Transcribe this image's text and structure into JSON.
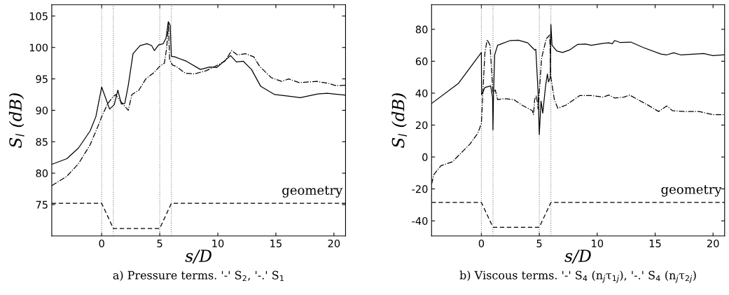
{
  "chart_data": [
    {
      "type": "line",
      "title": "a) Pressure terms. '-' S$_{2}$, '-.' S$_{1}$",
      "xlabel": "s/D",
      "ylabel": "S$_{l}$ (dB)",
      "xlim": [
        -4.3,
        21
      ],
      "ylim": [
        70,
        106.8
      ],
      "xticks": [
        0,
        5,
        10,
        15,
        20
      ],
      "yticks": [
        75,
        80,
        85,
        90,
        95,
        100,
        105
      ],
      "grid": false,
      "ref_lines": [
        {
          "axis": "x",
          "value": 0,
          "color": "#808080",
          "line_style": "dotted"
        },
        {
          "axis": "x",
          "value": 1,
          "color": "#808080",
          "line_style": "dotted"
        },
        {
          "axis": "x",
          "value": 5,
          "color": "#808080",
          "line_style": "dotted"
        },
        {
          "axis": "x",
          "value": 6,
          "color": "#808080",
          "line_style": "dotted"
        }
      ],
      "series": [
        {
          "color": "#000000",
          "line_style": "solid",
          "x": [
            -4.3,
            -3,
            -2,
            -1,
            -0.5,
            0,
            0.68,
            1.08,
            1.39,
            1.69,
            1.99,
            2.29,
            2.7,
            3.3,
            3.9,
            4.3,
            4.54,
            4.9,
            5.3,
            5.54,
            5.74,
            5.9,
            6.0,
            6.3,
            7.3,
            8.5,
            9.3,
            9.9,
            11.1,
            11.6,
            12.2,
            12.9,
            13.7,
            14.9,
            16.3,
            17.1,
            18.6,
            19.4,
            21
          ],
          "values": [
            81.4,
            82.3,
            84,
            86.7,
            89,
            93.7,
            90.2,
            90.9,
            93.2,
            91,
            91.1,
            94,
            99,
            100.3,
            100.6,
            100.3,
            99.5,
            100.4,
            100.6,
            101.5,
            104.1,
            103.5,
            98.6,
            98.5,
            97.8,
            96.5,
            96.9,
            96.8,
            98.7,
            97.7,
            97.8,
            96.5,
            93.8,
            92.5,
            92.2,
            92.0,
            92.6,
            92.7,
            92.4
          ]
        },
        {
          "color": "#000000",
          "line_style": "dashdot",
          "x": [
            -4.3,
            -3,
            -2,
            -1,
            -0.2,
            0,
            0.5,
            0.9,
            1.2,
            1.6,
            2.29,
            2.6,
            3.2,
            3.8,
            4.5,
            5.0,
            5.4,
            5.6,
            5.75,
            5.85,
            6.1,
            6.4,
            7.2,
            8,
            9,
            10,
            10.6,
            11.2,
            11.7,
            12.4,
            13.1,
            13.6,
            14.6,
            15.5,
            16.1,
            17,
            18.5,
            19.5,
            20.2,
            21
          ],
          "values": [
            78.0,
            79.5,
            81.5,
            84.5,
            88,
            89,
            91.0,
            92.0,
            92.5,
            91.5,
            90,
            92.5,
            93.2,
            95.0,
            96,
            97,
            97.5,
            100,
            104,
            98,
            97.2,
            97.0,
            95.9,
            95.8,
            96.3,
            97.2,
            97.8,
            99.5,
            98.8,
            99.0,
            98.5,
            97,
            95.2,
            94.6,
            95.0,
            94.4,
            94.6,
            94.3,
            93.9,
            94.0
          ]
        },
        {
          "color": "#000000",
          "line_style": "dashed",
          "x": [
            -4.3,
            0,
            1,
            5,
            6,
            21
          ],
          "values": [
            75.2,
            75.2,
            71.2,
            71.2,
            75.2,
            75.2
          ]
        }
      ],
      "annotations": [
        {
          "text": "geometry",
          "x": 21,
          "y": 75.2
        }
      ]
    },
    {
      "type": "line",
      "title": "b) Viscous terms. '-' S$_{4}$ (n$_{j}$τ$_{1j}$), '-.' S$_{4}$ (n$_{j}$τ$_{2j}$)",
      "xlabel": "s/D",
      "ylabel": "S$_{l}$ (dB)",
      "xlim": [
        -4.3,
        21
      ],
      "ylim": [
        -49.5,
        95.4
      ],
      "xticks": [
        0,
        5,
        10,
        15,
        20
      ],
      "yticks": [
        -40,
        -20,
        0,
        20,
        40,
        60,
        80
      ],
      "grid": false,
      "ref_lines": [
        {
          "axis": "x",
          "value": 0,
          "color": "#808080",
          "line_style": "dotted"
        },
        {
          "axis": "x",
          "value": 1,
          "color": "#808080",
          "line_style": "dotted"
        },
        {
          "axis": "x",
          "value": 5,
          "color": "#808080",
          "line_style": "dotted"
        },
        {
          "axis": "x",
          "value": 6,
          "color": "#808080",
          "line_style": "dotted"
        }
      ],
      "series": [
        {
          "color": "#000000",
          "line_style": "solid",
          "x": [
            -4.3,
            -2,
            0,
            0.02,
            0.3,
            0.8,
            0.97,
            1.0,
            1.05,
            1.15,
            1.4,
            1.6,
            2.5,
            3.2,
            4,
            4.4,
            4.6,
            4.7,
            4.9,
            5.0,
            5.15,
            5.3,
            5.55,
            5.7,
            5.8,
            5.95,
            6.0,
            6.1,
            6.5,
            7,
            7.6,
            8.3,
            9,
            9.5,
            10.5,
            11,
            11.3,
            11.5,
            12,
            12.9,
            14,
            15.5,
            16.0,
            16.6,
            17.2,
            19.2,
            20,
            21
          ],
          "values": [
            33.5,
            46,
            65.5,
            39,
            43.5,
            44.5,
            37,
            17,
            40,
            64,
            70,
            70.5,
            73,
            73.2,
            71.5,
            68.5,
            67,
            67.5,
            40,
            14,
            35,
            27.5,
            45,
            52,
            47,
            50,
            83,
            70,
            66.5,
            65.5,
            67,
            70.5,
            70.8,
            70,
            71.2,
            71.5,
            71,
            73,
            71.7,
            72,
            68.5,
            64.5,
            64.0,
            65.3,
            64.0,
            64.8,
            63.5,
            64
          ]
        },
        {
          "color": "#000000",
          "line_style": "dashdot",
          "x": [
            -4.3,
            -4.1,
            -3.5,
            -2.5,
            -1,
            -0.3,
            0,
            0.3,
            0.5,
            0.75,
            1.0,
            1.2,
            1.4,
            2,
            2.8,
            3.5,
            4.4,
            4.5,
            4.6,
            4.75,
            4.9,
            5.2,
            5.6,
            5.9,
            6.0,
            6.3,
            6.6,
            7.3,
            8.5,
            9.5,
            10.5,
            11.0,
            11.5,
            12.3,
            12.8,
            13.5,
            14.5,
            15.3,
            16.0,
            16.5,
            17.5,
            18.8,
            20,
            21
          ],
          "values": [
            -17,
            -11,
            -5.5,
            -3,
            8,
            15,
            21,
            65,
            73.5,
            70,
            40,
            42,
            36,
            36.5,
            36,
            32.5,
            29,
            26.5,
            36,
            38.5,
            30,
            62,
            74,
            76.5,
            50,
            36,
            30.5,
            32.5,
            38.5,
            38.5,
            37.5,
            38.8,
            37,
            37.5,
            38.8,
            36,
            32,
            28.5,
            32,
            29,
            28.5,
            28.5,
            26.5,
            26.5
          ]
        },
        {
          "color": "#000000",
          "line_style": "dashed",
          "x": [
            -4.3,
            0,
            1,
            5,
            6,
            21
          ],
          "values": [
            -28.5,
            -28.5,
            -44,
            -44,
            -28.5,
            -28.5
          ]
        }
      ],
      "annotations": [
        {
          "text": "geometry",
          "x": 21,
          "y": -28.5
        }
      ]
    }
  ]
}
